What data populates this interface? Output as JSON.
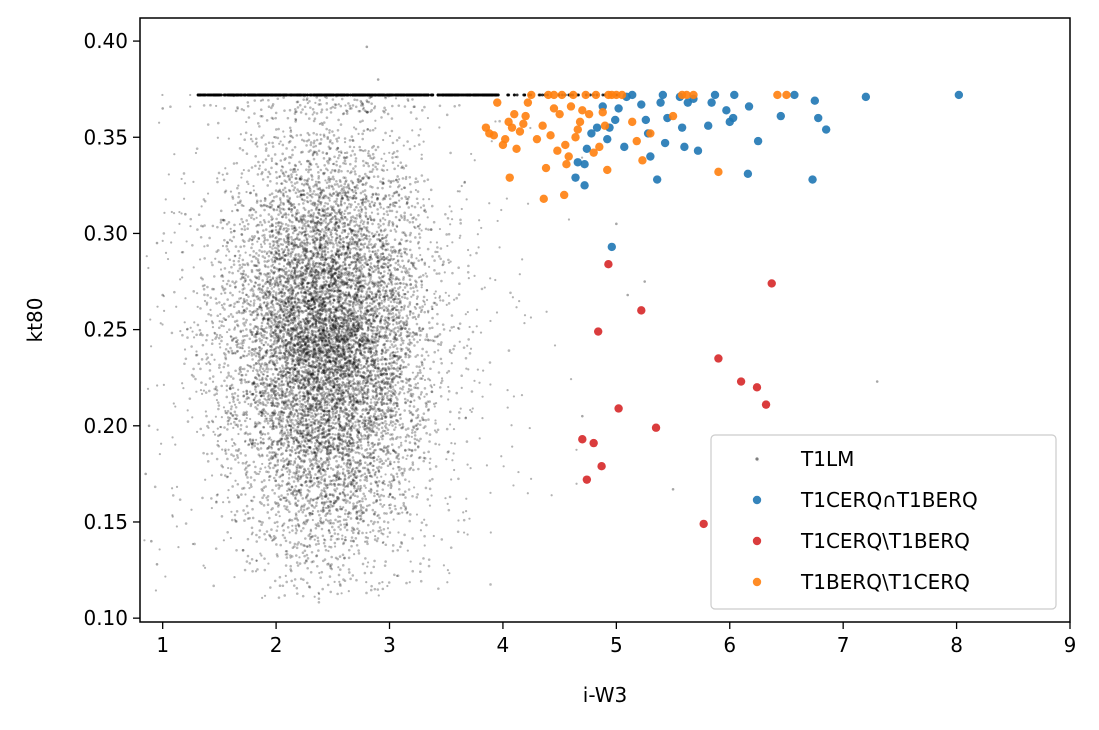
{
  "chart_data": {
    "type": "scatter",
    "xlabel": "i-W3",
    "ylabel": "kt80",
    "xlim": [
      0.8,
      9.0
    ],
    "ylim": [
      0.098,
      0.412
    ],
    "x_ticks": [
      "1",
      "2",
      "3",
      "4",
      "5",
      "6",
      "7",
      "8",
      "9"
    ],
    "y_ticks": [
      "0.10",
      "0.15",
      "0.20",
      "0.25",
      "0.30",
      "0.35",
      "0.40"
    ],
    "legend_position": "lower-right",
    "series": [
      {
        "name": "T1LM",
        "color": "#000000",
        "marker": "small-dot",
        "note_points": "dense cloud of faint points",
        "cloud": {
          "center_x": 2.45,
          "center_y": 0.245,
          "core_extent_x": [
            1.6,
            3.6
          ],
          "core_extent_y": [
            0.13,
            0.37
          ],
          "upper_edge_y": 0.372,
          "upper_edge_extent_x": [
            1.3,
            5.1
          ]
        },
        "outliers": [
          {
            "x": 2.8,
            "y": 0.397
          },
          {
            "x": 2.9,
            "y": 0.38
          },
          {
            "x": 7.3,
            "y": 0.223
          },
          {
            "x": 5.5,
            "y": 0.167
          },
          {
            "x": 6.25,
            "y": 0.182
          },
          {
            "x": 5.25,
            "y": 0.275
          },
          {
            "x": 4.7,
            "y": 0.205
          },
          {
            "x": 1.0,
            "y": 0.365
          },
          {
            "x": 0.95,
            "y": 0.295
          },
          {
            "x": 1.0,
            "y": 0.268
          },
          {
            "x": 0.88,
            "y": 0.2
          },
          {
            "x": 0.85,
            "y": 0.175
          },
          {
            "x": 0.9,
            "y": 0.14
          },
          {
            "x": 0.95,
            "y": 0.128
          },
          {
            "x": 1.2,
            "y": 0.31
          },
          {
            "x": 5.0,
            "y": 0.305
          },
          {
            "x": 5.1,
            "y": 0.268
          }
        ]
      },
      {
        "name": "T1CERQ∩T1BERQ",
        "color": "#1f77b4",
        "points": [
          {
            "x": 8.02,
            "y": 0.372
          },
          {
            "x": 7.2,
            "y": 0.371
          },
          {
            "x": 6.85,
            "y": 0.354
          },
          {
            "x": 6.78,
            "y": 0.36
          },
          {
            "x": 6.75,
            "y": 0.369
          },
          {
            "x": 6.73,
            "y": 0.328
          },
          {
            "x": 6.57,
            "y": 0.372
          },
          {
            "x": 6.45,
            "y": 0.361
          },
          {
            "x": 6.25,
            "y": 0.348
          },
          {
            "x": 6.17,
            "y": 0.366
          },
          {
            "x": 6.16,
            "y": 0.331
          },
          {
            "x": 6.04,
            "y": 0.372
          },
          {
            "x": 6.03,
            "y": 0.36
          },
          {
            "x": 6.0,
            "y": 0.358
          },
          {
            "x": 5.97,
            "y": 0.364
          },
          {
            "x": 5.87,
            "y": 0.372
          },
          {
            "x": 5.84,
            "y": 0.368
          },
          {
            "x": 5.81,
            "y": 0.356
          },
          {
            "x": 5.72,
            "y": 0.343
          },
          {
            "x": 5.68,
            "y": 0.37
          },
          {
            "x": 5.63,
            "y": 0.368
          },
          {
            "x": 5.6,
            "y": 0.345
          },
          {
            "x": 5.58,
            "y": 0.355
          },
          {
            "x": 5.56,
            "y": 0.371
          },
          {
            "x": 5.45,
            "y": 0.36
          },
          {
            "x": 5.43,
            "y": 0.347
          },
          {
            "x": 5.41,
            "y": 0.372
          },
          {
            "x": 5.39,
            "y": 0.368
          },
          {
            "x": 5.36,
            "y": 0.328
          },
          {
            "x": 5.3,
            "y": 0.34
          },
          {
            "x": 5.28,
            "y": 0.352
          },
          {
            "x": 5.26,
            "y": 0.359
          },
          {
            "x": 5.22,
            "y": 0.367
          },
          {
            "x": 5.14,
            "y": 0.372
          },
          {
            "x": 5.09,
            "y": 0.371
          },
          {
            "x": 5.07,
            "y": 0.345
          },
          {
            "x": 5.02,
            "y": 0.365
          },
          {
            "x": 4.99,
            "y": 0.359
          },
          {
            "x": 4.96,
            "y": 0.293
          },
          {
            "x": 4.94,
            "y": 0.355
          },
          {
            "x": 4.92,
            "y": 0.349
          },
          {
            "x": 4.88,
            "y": 0.366
          },
          {
            "x": 4.83,
            "y": 0.355
          },
          {
            "x": 4.78,
            "y": 0.352
          },
          {
            "x": 4.74,
            "y": 0.344
          },
          {
            "x": 4.72,
            "y": 0.336
          },
          {
            "x": 4.72,
            "y": 0.325
          },
          {
            "x": 4.66,
            "y": 0.337
          },
          {
            "x": 4.64,
            "y": 0.329
          }
        ]
      },
      {
        "name": "T1CERQ\\T1BERQ",
        "color": "#d62728",
        "points": [
          {
            "x": 4.93,
            "y": 0.284
          },
          {
            "x": 4.84,
            "y": 0.249
          },
          {
            "x": 5.22,
            "y": 0.26
          },
          {
            "x": 6.37,
            "y": 0.274
          },
          {
            "x": 5.9,
            "y": 0.235
          },
          {
            "x": 6.1,
            "y": 0.223
          },
          {
            "x": 6.24,
            "y": 0.22
          },
          {
            "x": 6.32,
            "y": 0.211
          },
          {
            "x": 5.02,
            "y": 0.209
          },
          {
            "x": 5.35,
            "y": 0.199
          },
          {
            "x": 4.7,
            "y": 0.193
          },
          {
            "x": 4.8,
            "y": 0.191
          },
          {
            "x": 4.87,
            "y": 0.179
          },
          {
            "x": 4.74,
            "y": 0.172
          },
          {
            "x": 5.77,
            "y": 0.149
          }
        ]
      },
      {
        "name": "T1BERQ\\T1CERQ",
        "color": "#ff7f0e",
        "points": [
          {
            "x": 6.5,
            "y": 0.372
          },
          {
            "x": 6.42,
            "y": 0.372
          },
          {
            "x": 5.9,
            "y": 0.332
          },
          {
            "x": 5.68,
            "y": 0.372
          },
          {
            "x": 5.62,
            "y": 0.372
          },
          {
            "x": 5.58,
            "y": 0.372
          },
          {
            "x": 5.5,
            "y": 0.361
          },
          {
            "x": 5.3,
            "y": 0.352
          },
          {
            "x": 5.23,
            "y": 0.338
          },
          {
            "x": 5.18,
            "y": 0.348
          },
          {
            "x": 5.14,
            "y": 0.358
          },
          {
            "x": 5.05,
            "y": 0.372
          },
          {
            "x": 5.0,
            "y": 0.372
          },
          {
            "x": 4.96,
            "y": 0.372
          },
          {
            "x": 4.93,
            "y": 0.372
          },
          {
            "x": 4.9,
            "y": 0.356
          },
          {
            "x": 4.92,
            "y": 0.333
          },
          {
            "x": 4.88,
            "y": 0.363
          },
          {
            "x": 4.85,
            "y": 0.345
          },
          {
            "x": 4.82,
            "y": 0.372
          },
          {
            "x": 4.8,
            "y": 0.342
          },
          {
            "x": 4.76,
            "y": 0.362
          },
          {
            "x": 4.73,
            "y": 0.372
          },
          {
            "x": 4.7,
            "y": 0.364
          },
          {
            "x": 4.68,
            "y": 0.358
          },
          {
            "x": 4.66,
            "y": 0.354
          },
          {
            "x": 4.64,
            "y": 0.35
          },
          {
            "x": 4.62,
            "y": 0.372
          },
          {
            "x": 4.6,
            "y": 0.366
          },
          {
            "x": 4.58,
            "y": 0.34
          },
          {
            "x": 4.56,
            "y": 0.336
          },
          {
            "x": 4.55,
            "y": 0.346
          },
          {
            "x": 4.54,
            "y": 0.32
          },
          {
            "x": 4.52,
            "y": 0.372
          },
          {
            "x": 4.5,
            "y": 0.362
          },
          {
            "x": 4.48,
            "y": 0.343
          },
          {
            "x": 4.45,
            "y": 0.372
          },
          {
            "x": 4.42,
            "y": 0.351
          },
          {
            "x": 4.4,
            "y": 0.372
          },
          {
            "x": 4.38,
            "y": 0.334
          },
          {
            "x": 4.36,
            "y": 0.318
          },
          {
            "x": 4.35,
            "y": 0.356
          },
          {
            "x": 4.3,
            "y": 0.349
          },
          {
            "x": 4.25,
            "y": 0.372
          },
          {
            "x": 4.22,
            "y": 0.368
          },
          {
            "x": 4.2,
            "y": 0.361
          },
          {
            "x": 4.18,
            "y": 0.357
          },
          {
            "x": 4.15,
            "y": 0.353
          },
          {
            "x": 4.12,
            "y": 0.344
          },
          {
            "x": 4.1,
            "y": 0.362
          },
          {
            "x": 4.08,
            "y": 0.355
          },
          {
            "x": 4.05,
            "y": 0.358
          },
          {
            "x": 4.02,
            "y": 0.349
          },
          {
            "x": 4.0,
            "y": 0.346
          },
          {
            "x": 3.95,
            "y": 0.368
          },
          {
            "x": 3.92,
            "y": 0.351
          },
          {
            "x": 3.88,
            "y": 0.352
          },
          {
            "x": 3.85,
            "y": 0.355
          },
          {
            "x": 4.06,
            "y": 0.329
          },
          {
            "x": 4.45,
            "y": 0.365
          }
        ]
      }
    ]
  }
}
